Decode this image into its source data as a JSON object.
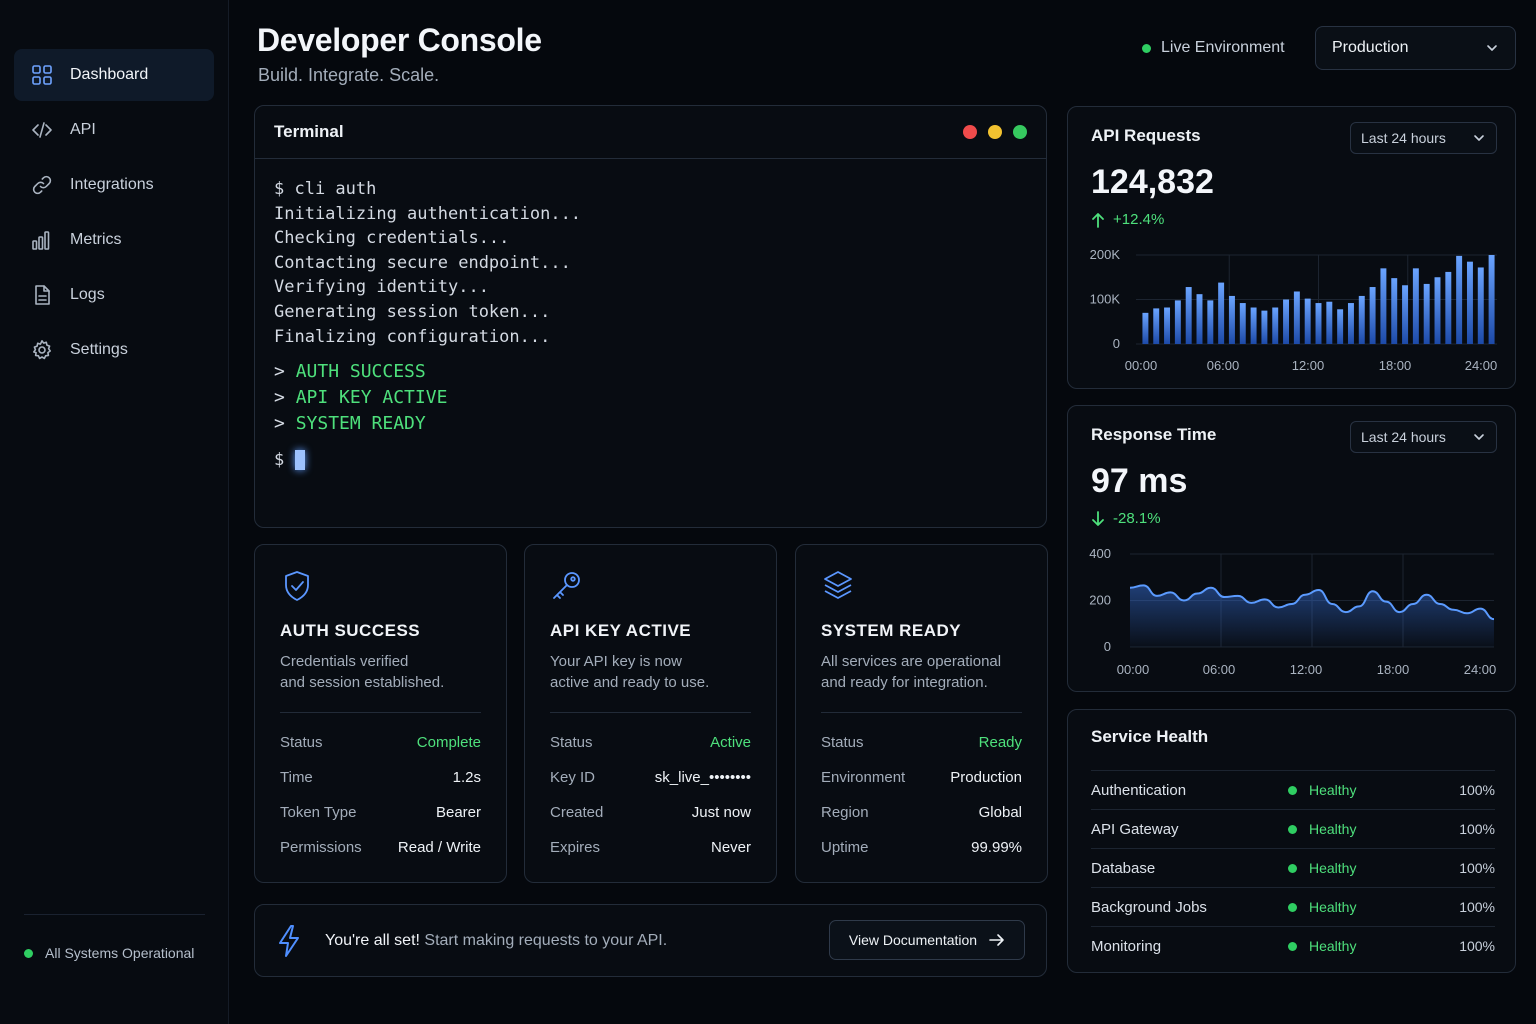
{
  "sidebar": {
    "items": [
      {
        "label": "Dashboard",
        "icon": "grid-icon",
        "active": true
      },
      {
        "label": "API",
        "icon": "code-icon"
      },
      {
        "label": "Integrations",
        "icon": "link-icon"
      },
      {
        "label": "Metrics",
        "icon": "bar-chart-icon"
      },
      {
        "label": "Logs",
        "icon": "document-icon"
      },
      {
        "label": "Settings",
        "icon": "gear-icon"
      }
    ],
    "system_status": "All Systems Operational"
  },
  "header": {
    "title": "Developer Console",
    "subtitle": "Build. Integrate. Scale.",
    "live_label": "Live Environment",
    "environment": "Production"
  },
  "terminal": {
    "title": "Terminal",
    "lines": [
      "$ cli auth",
      "Initializing authentication...",
      "Checking credentials...",
      "Contacting secure endpoint...",
      "Verifying identity...",
      "Generating session token...",
      "Finalizing configuration..."
    ],
    "results": [
      "AUTH SUCCESS",
      "API KEY ACTIVE",
      "SYSTEM READY"
    ],
    "prompt": "$"
  },
  "cards": [
    {
      "title": "AUTH SUCCESS",
      "desc_line1": "Credentials verified",
      "desc_line2": "and session established.",
      "icon": "shield-check-icon",
      "rows": [
        {
          "k": "Status",
          "v": "Complete",
          "green": true
        },
        {
          "k": "Time",
          "v": "1.2s"
        },
        {
          "k": "Token Type",
          "v": "Bearer"
        },
        {
          "k": "Permissions",
          "v": "Read / Write"
        }
      ]
    },
    {
      "title": "API KEY ACTIVE",
      "desc_line1": "Your API key is now",
      "desc_line2": "active and ready to use.",
      "icon": "key-icon",
      "rows": [
        {
          "k": "Status",
          "v": "Active",
          "green": true
        },
        {
          "k": "Key ID",
          "v": "sk_live_••••••••"
        },
        {
          "k": "Created",
          "v": "Just now"
        },
        {
          "k": "Expires",
          "v": "Never"
        }
      ]
    },
    {
      "title": "SYSTEM READY",
      "desc_line1": "All services are operational",
      "desc_line2": "and ready for integration.",
      "icon": "layers-icon",
      "rows": [
        {
          "k": "Status",
          "v": "Ready",
          "green": true
        },
        {
          "k": "Environment",
          "v": "Production"
        },
        {
          "k": "Region",
          "v": "Global"
        },
        {
          "k": "Uptime",
          "v": "99.99%"
        }
      ]
    }
  ],
  "banner": {
    "strong": "You're all set!",
    "text": " Start making requests to your API.",
    "button": "View Documentation"
  },
  "api_requests": {
    "title": "API Requests",
    "range": "Last 24 hours",
    "value": "124,832",
    "delta": "+12.4%"
  },
  "response_time": {
    "title": "Response Time",
    "range": "Last 24 hours",
    "value": "97 ms",
    "delta": "-28.1%"
  },
  "service_health": {
    "title": "Service Health",
    "rows": [
      {
        "name": "Authentication",
        "status": "Healthy",
        "pct": "100%"
      },
      {
        "name": "API Gateway",
        "status": "Healthy",
        "pct": "100%"
      },
      {
        "name": "Database",
        "status": "Healthy",
        "pct": "100%"
      },
      {
        "name": "Background Jobs",
        "status": "Healthy",
        "pct": "100%"
      },
      {
        "name": "Monitoring",
        "status": "Healthy",
        "pct": "100%"
      }
    ]
  },
  "colors": {
    "accent_blue": "#4f8fff",
    "success_green": "#2fce62",
    "dot_red": "#ef4b4b",
    "dot_yellow": "#f2c230",
    "dot_green": "#36c95f"
  },
  "chart_data": [
    {
      "type": "bar",
      "title": "API Requests",
      "x_ticks": [
        "00:00",
        "06:00",
        "12:00",
        "18:00",
        "24:00"
      ],
      "y_ticks": [
        "0",
        "100K",
        "200K"
      ],
      "ylim": [
        0,
        200000
      ],
      "values": [
        70000,
        80000,
        82000,
        98000,
        128000,
        112000,
        98000,
        138000,
        108000,
        92000,
        82000,
        75000,
        82000,
        100000,
        118000,
        102000,
        92000,
        95000,
        78000,
        92000,
        108000,
        128000,
        170000,
        148000,
        132000,
        170000,
        135000,
        150000,
        162000,
        198000,
        185000,
        172000,
        200000
      ]
    },
    {
      "type": "area",
      "title": "Response Time",
      "x_ticks": [
        "00:00",
        "06:00",
        "12:00",
        "18:00",
        "24:00"
      ],
      "y_ticks": [
        "0",
        "200",
        "400"
      ],
      "ylim": [
        0,
        400
      ],
      "values": [
        255,
        265,
        220,
        235,
        200,
        230,
        255,
        215,
        220,
        190,
        205,
        170,
        185,
        225,
        245,
        185,
        150,
        175,
        240,
        195,
        150,
        185,
        225,
        185,
        160,
        145,
        165,
        120
      ]
    }
  ]
}
